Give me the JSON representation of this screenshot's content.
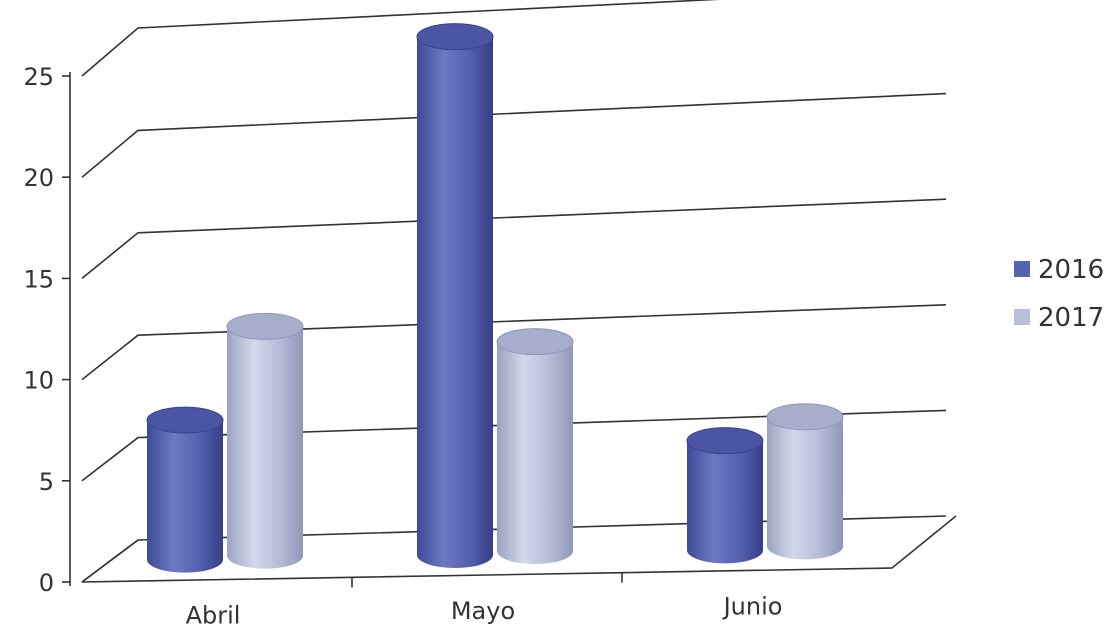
{
  "chart_data": {
    "type": "bar",
    "title": "",
    "xlabel": "",
    "ylabel": "",
    "categories": [
      "Abril",
      "Mayo",
      "Junio"
    ],
    "series": [
      {
        "name": "2016",
        "values": [
          7,
          26,
          5.5
        ],
        "color": "#5763b0"
      },
      {
        "name": "2017",
        "values": [
          11.5,
          10.5,
          6.5
        ],
        "color": "#b8c0d9"
      }
    ],
    "ylim": [
      0,
      25
    ],
    "yticks": [
      0,
      5,
      10,
      15,
      20,
      25
    ],
    "grid": true,
    "style": "3d-cylinder",
    "legend_position": "right"
  }
}
